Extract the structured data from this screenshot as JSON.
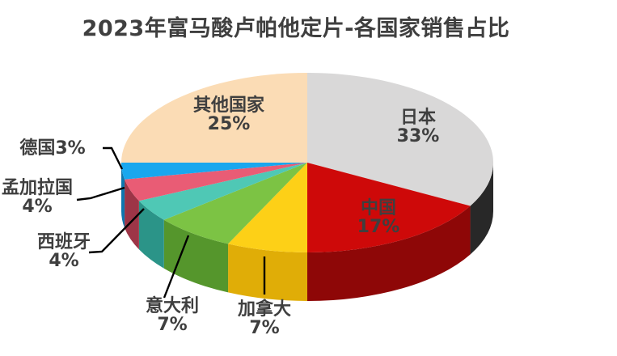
{
  "chart_data": {
    "type": "pie",
    "style_3d": true,
    "title": "2023年富马酸卢帕他定片-各国家销售占比",
    "unit": "%",
    "legend_position": "none",
    "start_angle_deg_from_top": 0,
    "direction": "clockwise",
    "segments": [
      {
        "label": "日本",
        "value": 33,
        "pct": "33%",
        "color": "#d9d8d8",
        "side_color": "#282828"
      },
      {
        "label": "中国",
        "value": 17,
        "pct": "17%",
        "color": "#ce0909",
        "side_color": "#8e0707"
      },
      {
        "label": "加拿大",
        "value": 7,
        "pct": "7%",
        "color": "#fdd017",
        "side_color": "#e0ad07"
      },
      {
        "label": "意大利",
        "value": 7,
        "pct": "7%",
        "color": "#7cc344",
        "side_color": "#55962c"
      },
      {
        "label": "西班牙",
        "value": 4,
        "pct": "4%",
        "color": "#4fc8b5",
        "side_color": "#2b9488"
      },
      {
        "label": "孟加拉国",
        "value": 4,
        "pct": "4%",
        "color": "#e95c75",
        "side_color": "#9d3547"
      },
      {
        "label": "德国",
        "value": 3,
        "pct": "3%",
        "color": "#19a7ee",
        "side_color": "#0f76ad"
      },
      {
        "label": "其他国家",
        "value": 25,
        "pct": "25%",
        "color": "#fbdcb5",
        "side_color": "#d9b184"
      }
    ],
    "style": {
      "background": "#ffffff",
      "title_color": "#3f3f3f",
      "label_color": "#3f3f3f",
      "leader_line_color": "#000000"
    }
  }
}
